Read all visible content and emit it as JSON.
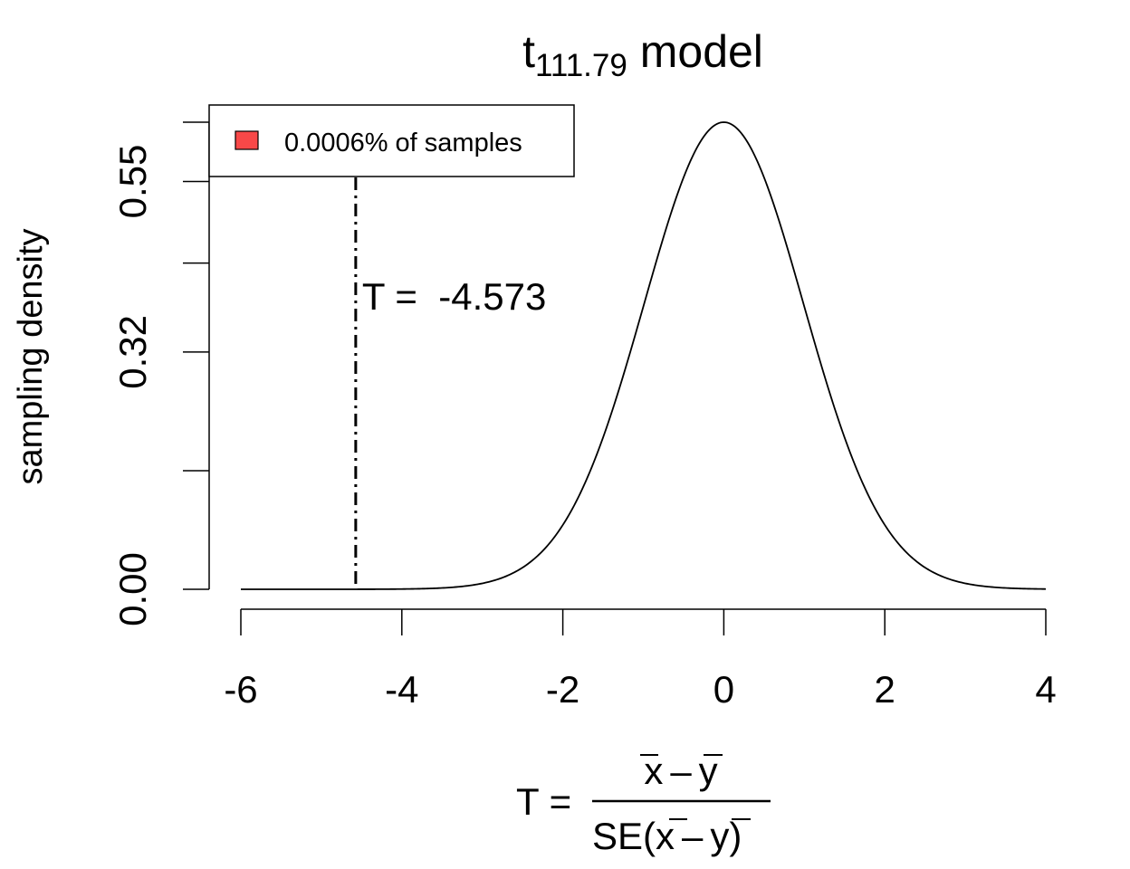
{
  "chart_data": {
    "type": "line",
    "title": {
      "base": "t",
      "subscript": "111.79",
      "suffix": " model"
    },
    "ylabel": "sampling density",
    "xlabel": {
      "lhs": "T =",
      "numerator": {
        "a": "x",
        "minus": "–",
        "b": "y"
      },
      "denominator": {
        "prefix": "SE",
        "open": "(",
        "a": "x",
        "minus": "–",
        "b": "y",
        "close": ")"
      }
    },
    "distribution": {
      "name": "t",
      "df": 111.79
    },
    "xlim": [
      -6,
      4
    ],
    "x_ticks": [
      -6,
      -4,
      -2,
      0,
      2,
      4
    ],
    "x_tick_labels": [
      "-6",
      "-4",
      "-2",
      "0",
      "2",
      "4"
    ],
    "y_ticks": [
      0,
      0.16,
      0.32,
      0.44,
      0.55,
      0.63
    ],
    "y_tick_labels": [
      "0.00",
      "",
      "0.32",
      "",
      "0.55",
      ""
    ],
    "ylim": [
      0,
      0.63
    ],
    "observed": {
      "value": -4.573,
      "label": "T =  -4.573"
    },
    "shaded_region": {
      "from": -6,
      "to": -4.573,
      "color": "#f84848"
    },
    "legend": {
      "position": "top-left",
      "items": [
        {
          "label": "0.0006% of samples",
          "color": "#f84848"
        }
      ]
    }
  }
}
